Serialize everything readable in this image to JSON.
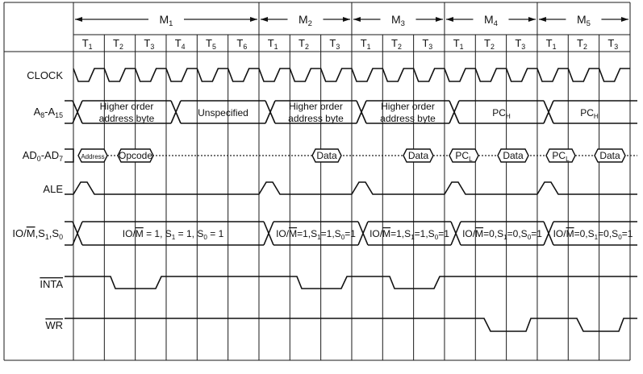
{
  "machine_cycles": [
    {
      "label": "M_1",
      "t_states": [
        "T_1",
        "T_2",
        "T_3",
        "T_4",
        "T_5",
        "T_6"
      ]
    },
    {
      "label": "M_2",
      "t_states": [
        "T_1",
        "T_2",
        "T_3"
      ]
    },
    {
      "label": "M_3",
      "t_states": [
        "T_1",
        "T_2",
        "T_3"
      ]
    },
    {
      "label": "M_4",
      "t_states": [
        "T_1",
        "T_2",
        "T_3"
      ]
    },
    {
      "label": "M_5",
      "t_states": [
        "T_1",
        "T_2",
        "T_3"
      ]
    }
  ],
  "signals": {
    "clock": "CLOCK",
    "address_high": "A_8-A_15",
    "address_data": "AD_0-AD_7",
    "ale": "ALE",
    "status": "IO/~M~,S_1,S_0",
    "inta": "~INTA~",
    "wr": "~WR~"
  },
  "address_high_segments": [
    [
      "Higher order",
      "address byte"
    ],
    [
      "Unspecified"
    ],
    [
      "Higher order",
      "address byte"
    ],
    [
      "Higher order",
      "address byte"
    ],
    [
      "PC_H"
    ],
    [
      "PC_H"
    ]
  ],
  "address_data_boxes": [
    "Address",
    "Opcode",
    "Data",
    "Data",
    "PC_L",
    "Data",
    "PC_L",
    "Data"
  ],
  "status_segments": [
    "IO/~M~ = 1, S_1 = 1, S_0 = 1",
    "IO/~M~=1,S_1=1,S_0=1",
    "IO/~M~=1,S_1=1,S_0=1",
    "IO/~M~=0,S_1=0,S_0=1",
    "IO/~M~=0,S_1=0,S_0=1"
  ]
}
